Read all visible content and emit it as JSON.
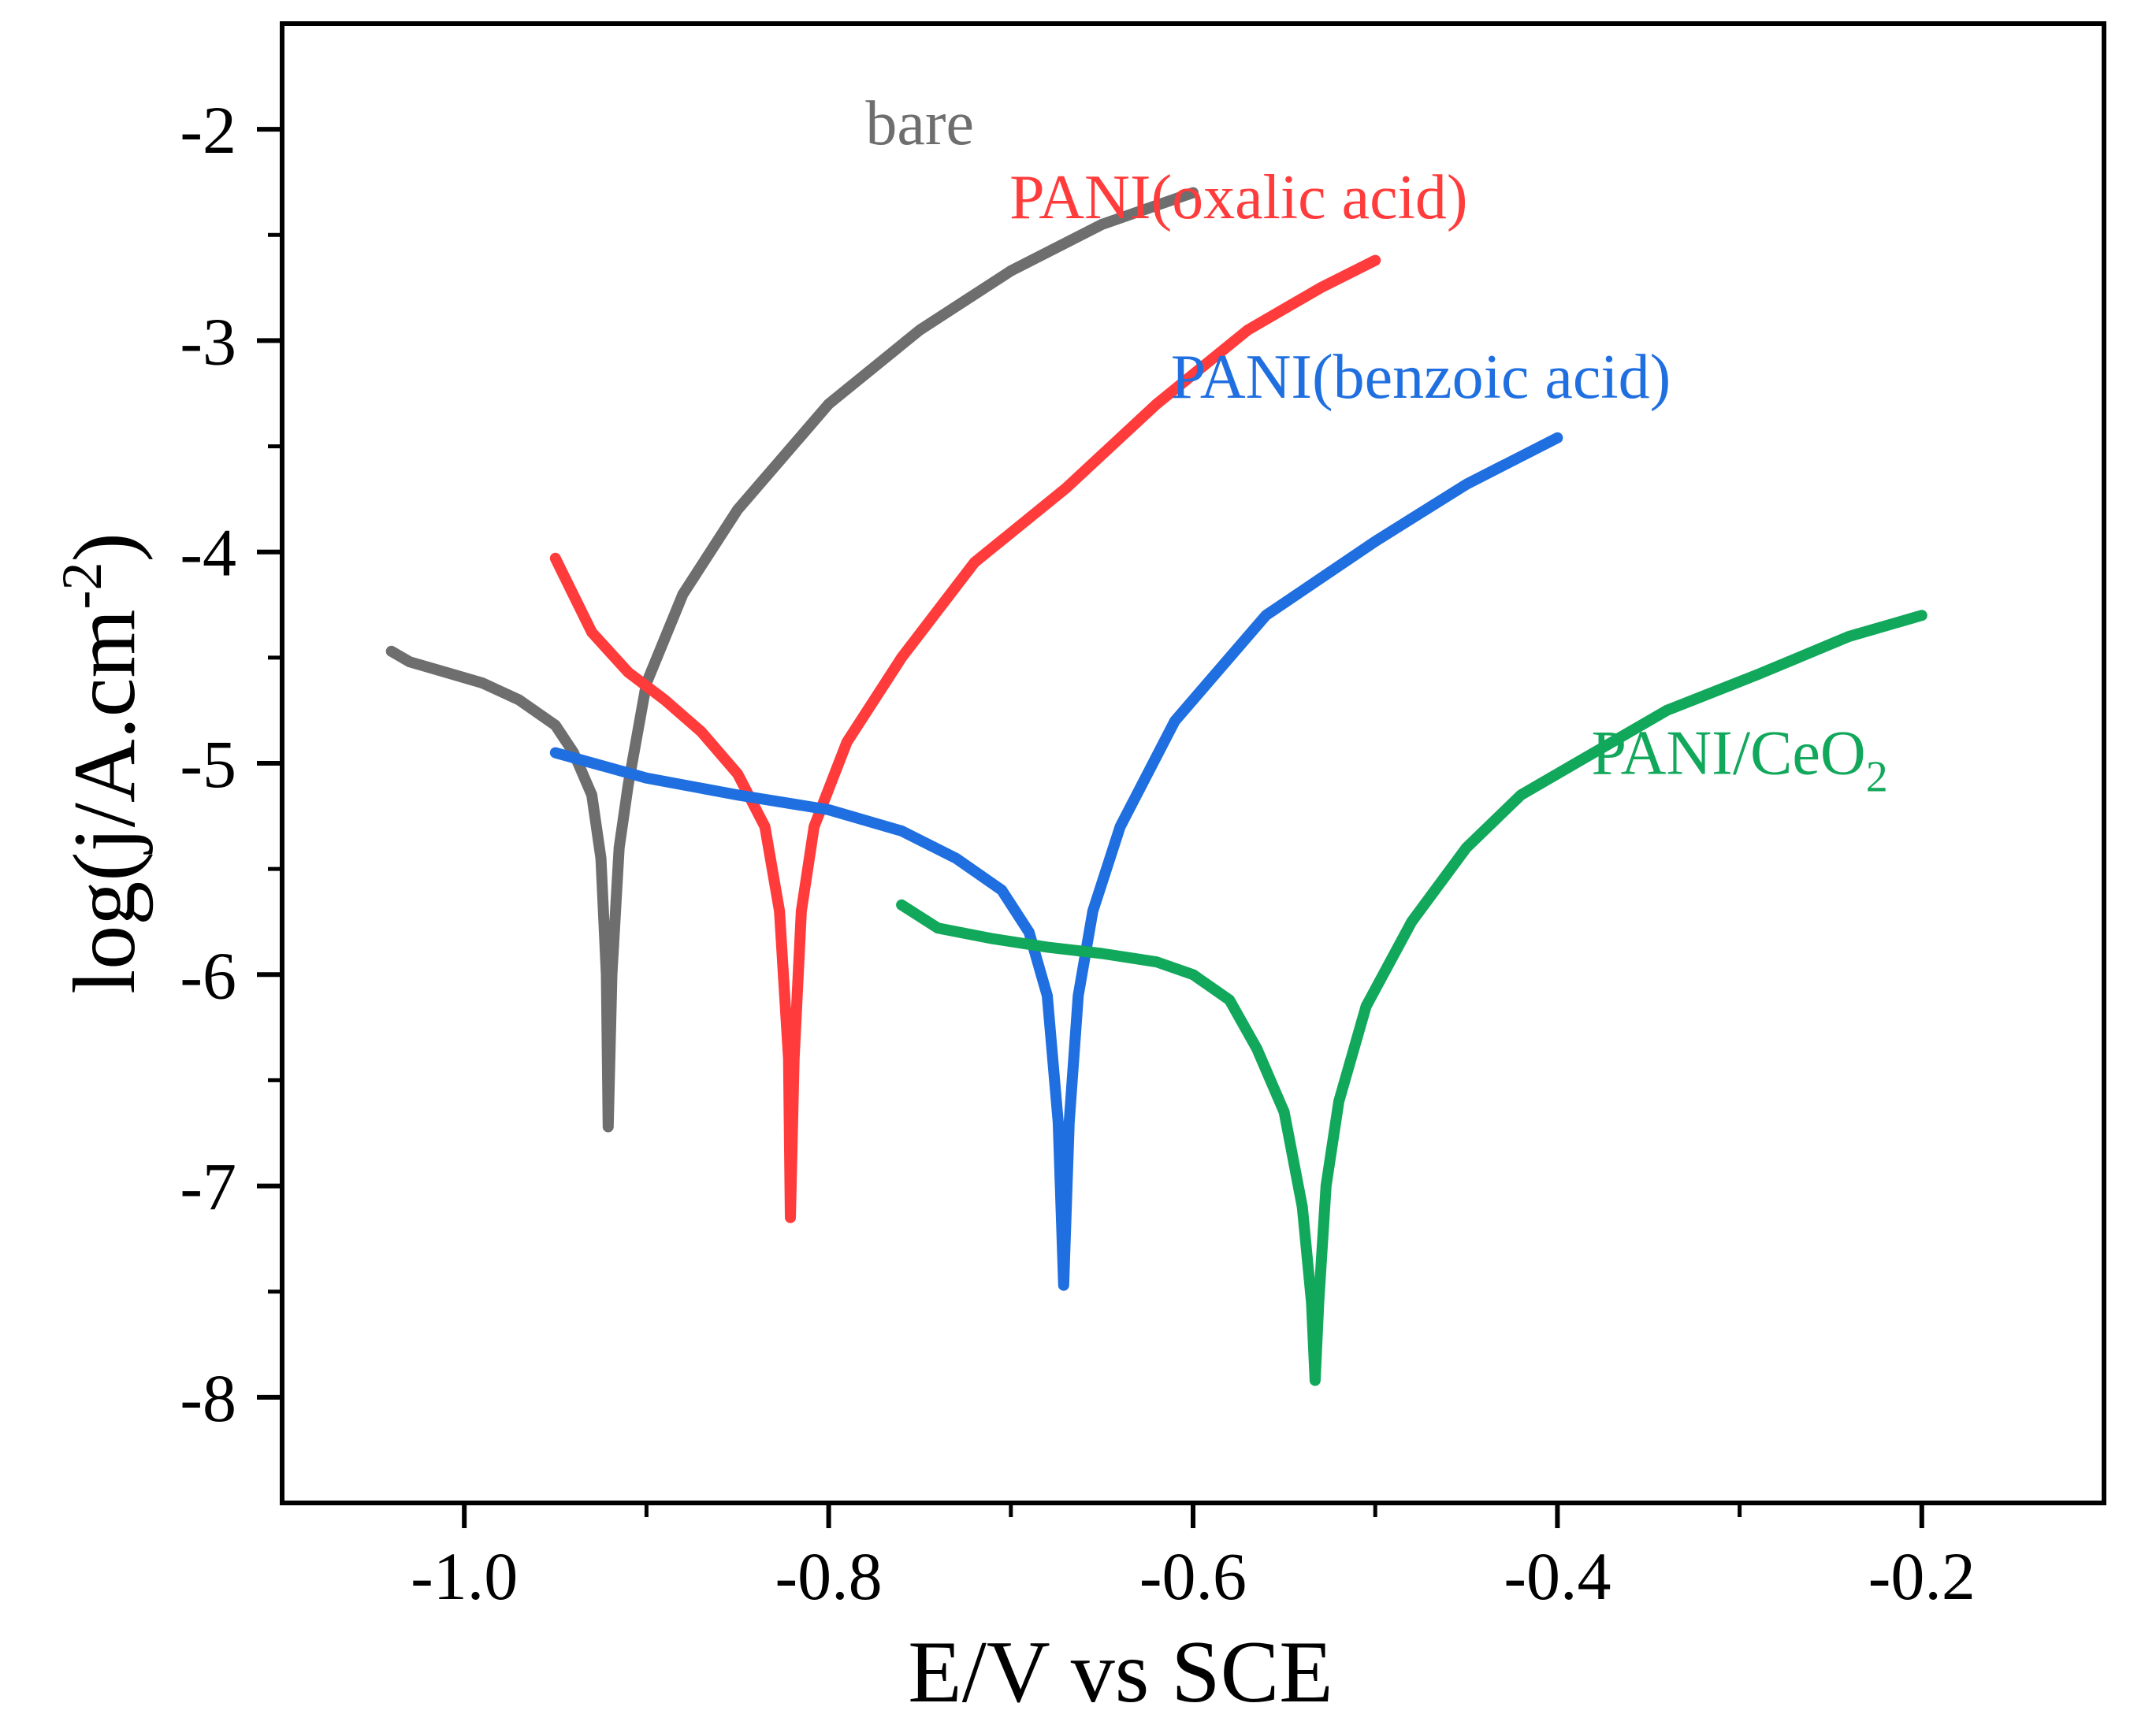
{
  "chart_data": {
    "type": "line",
    "title": "",
    "xlabel": "E/V vs SCE",
    "ylabel": {
      "prefix": "log(j/A.cm",
      "sup": "-2",
      "suffix": ")"
    },
    "xlim": [
      -1.1,
      -0.1
    ],
    "ylim": [
      -8.5,
      -1.5
    ],
    "x_ticks": [
      -1.0,
      -0.8,
      -0.6,
      -0.4,
      -0.2
    ],
    "x_tick_labels": [
      "-1.0",
      "-0.8",
      "-0.6",
      "-0.4",
      "-0.2"
    ],
    "x_minor_ticks": [
      -0.9,
      -0.7,
      -0.5,
      -0.3
    ],
    "y_ticks": [
      -2,
      -3,
      -4,
      -5,
      -6,
      -7,
      -8
    ],
    "y_tick_labels": [
      "-2",
      "-3",
      "-4",
      "-5",
      "-6",
      "-7",
      "-8"
    ],
    "y_minor_ticks": [
      -2.5,
      -3.5,
      -4.5,
      -5.5,
      -6.5,
      -7.5
    ],
    "grid": false,
    "legend": "inline labels next to each curve",
    "series": [
      {
        "name": "bare",
        "color": "#6e6e6e",
        "label": {
          "text": "bare",
          "sub": "",
          "x": -0.75,
          "y": -2.07
        },
        "points": [
          [
            -1.04,
            -4.47
          ],
          [
            -1.03,
            -4.52
          ],
          [
            -1.01,
            -4.57
          ],
          [
            -0.99,
            -4.62
          ],
          [
            -0.97,
            -4.7
          ],
          [
            -0.95,
            -4.82
          ],
          [
            -0.94,
            -4.95
          ],
          [
            -0.93,
            -5.15
          ],
          [
            -0.925,
            -5.45
          ],
          [
            -0.922,
            -6.0
          ],
          [
            -0.921,
            -6.72
          ],
          [
            -0.919,
            -6.0
          ],
          [
            -0.915,
            -5.4
          ],
          [
            -0.91,
            -5.1
          ],
          [
            -0.9,
            -4.62
          ],
          [
            -0.88,
            -4.2
          ],
          [
            -0.85,
            -3.8
          ],
          [
            -0.8,
            -3.3
          ],
          [
            -0.75,
            -2.95
          ],
          [
            -0.7,
            -2.67
          ],
          [
            -0.65,
            -2.45
          ],
          [
            -0.6,
            -2.3
          ]
        ]
      },
      {
        "name": "PANI(oxalic acid)",
        "color": "#ff3b3b",
        "label": {
          "text": "PANI(oxalic acid)",
          "sub": "",
          "x": -0.575,
          "y": -2.42
        },
        "points": [
          [
            -0.95,
            -4.03
          ],
          [
            -0.93,
            -4.38
          ],
          [
            -0.91,
            -4.57
          ],
          [
            -0.89,
            -4.7
          ],
          [
            -0.87,
            -4.85
          ],
          [
            -0.85,
            -5.05
          ],
          [
            -0.835,
            -5.3
          ],
          [
            -0.827,
            -5.7
          ],
          [
            -0.822,
            -6.4
          ],
          [
            -0.821,
            -7.15
          ],
          [
            -0.819,
            -6.4
          ],
          [
            -0.815,
            -5.7
          ],
          [
            -0.808,
            -5.3
          ],
          [
            -0.79,
            -4.9
          ],
          [
            -0.76,
            -4.5
          ],
          [
            -0.72,
            -4.05
          ],
          [
            -0.67,
            -3.7
          ],
          [
            -0.62,
            -3.3
          ],
          [
            -0.57,
            -2.95
          ],
          [
            -0.53,
            -2.75
          ],
          [
            -0.5,
            -2.62
          ]
        ]
      },
      {
        "name": "PANI(benzoic acid)",
        "color": "#1f6fe0",
        "label": {
          "text": "PANI(benzoic acid)",
          "sub": "",
          "x": -0.475,
          "y": -3.27
        },
        "points": [
          [
            -0.95,
            -4.95
          ],
          [
            -0.9,
            -5.07
          ],
          [
            -0.85,
            -5.15
          ],
          [
            -0.8,
            -5.22
          ],
          [
            -0.76,
            -5.32
          ],
          [
            -0.73,
            -5.45
          ],
          [
            -0.705,
            -5.6
          ],
          [
            -0.69,
            -5.8
          ],
          [
            -0.68,
            -6.1
          ],
          [
            -0.674,
            -6.7
          ],
          [
            -0.671,
            -7.47
          ],
          [
            -0.668,
            -6.7
          ],
          [
            -0.663,
            -6.1
          ],
          [
            -0.655,
            -5.7
          ],
          [
            -0.64,
            -5.3
          ],
          [
            -0.61,
            -4.8
          ],
          [
            -0.56,
            -4.3
          ],
          [
            -0.5,
            -3.95
          ],
          [
            -0.45,
            -3.68
          ],
          [
            -0.4,
            -3.46
          ]
        ]
      },
      {
        "name": "PANI/CeO2",
        "color": "#12a85b",
        "label": {
          "text": "PANI/CeO",
          "sub": "2",
          "x": -0.3,
          "y": -5.05
        },
        "points": [
          [
            -0.76,
            -5.67
          ],
          [
            -0.74,
            -5.78
          ],
          [
            -0.71,
            -5.83
          ],
          [
            -0.68,
            -5.87
          ],
          [
            -0.65,
            -5.9
          ],
          [
            -0.62,
            -5.94
          ],
          [
            -0.6,
            -6.0
          ],
          [
            -0.58,
            -6.12
          ],
          [
            -0.565,
            -6.35
          ],
          [
            -0.55,
            -6.65
          ],
          [
            -0.54,
            -7.1
          ],
          [
            -0.535,
            -7.55
          ],
          [
            -0.533,
            -7.92
          ],
          [
            -0.531,
            -7.55
          ],
          [
            -0.527,
            -7.0
          ],
          [
            -0.52,
            -6.6
          ],
          [
            -0.505,
            -6.15
          ],
          [
            -0.48,
            -5.75
          ],
          [
            -0.45,
            -5.4
          ],
          [
            -0.42,
            -5.15
          ],
          [
            -0.38,
            -4.95
          ],
          [
            -0.34,
            -4.75
          ],
          [
            -0.29,
            -4.58
          ],
          [
            -0.24,
            -4.4
          ],
          [
            -0.2,
            -4.3
          ]
        ]
      }
    ]
  }
}
